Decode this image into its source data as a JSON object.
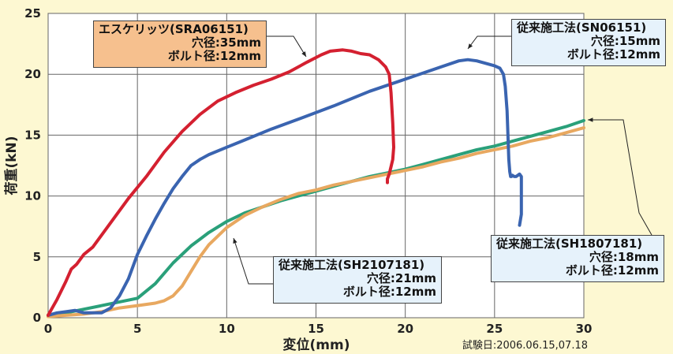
{
  "chart_data": {
    "type": "line",
    "title": "",
    "xlabel": "変位(mm)",
    "ylabel": "荷重(kN)",
    "xlim": [
      0,
      30
    ],
    "ylim": [
      0,
      25
    ],
    "xticks": [
      "0",
      "5",
      "10",
      "15",
      "20",
      "25",
      "30"
    ],
    "yticks": [
      "0",
      "5",
      "10",
      "15",
      "20",
      "25"
    ],
    "grid": true,
    "note": "試験日:2006.06.15,07.18",
    "series": [
      {
        "name": "エスケリッツ(SRA06151)",
        "color": "#d42030",
        "hole": "穴径:35mm",
        "bolt": "ボルト径:12mm",
        "x": [
          0,
          0.5,
          1.0,
          1.3,
          1.6,
          2.0,
          2.5,
          3.5,
          4.5,
          5.5,
          6.5,
          7.5,
          8.5,
          9.5,
          10.5,
          11.5,
          12.5,
          13.5,
          14.5,
          15.3,
          15.8,
          16.5,
          17.0,
          17.5,
          18.0,
          18.5,
          18.9,
          19.1,
          19.2,
          19.3,
          19.35,
          19.3,
          19.2,
          19.1,
          19.0,
          19.0
        ],
        "y": [
          0.2,
          1.5,
          3.0,
          4.0,
          4.4,
          5.2,
          5.8,
          7.8,
          9.8,
          11.6,
          13.6,
          15.3,
          16.7,
          17.8,
          18.5,
          19.1,
          19.6,
          20.2,
          21.0,
          21.6,
          21.9,
          22.0,
          21.9,
          21.7,
          21.6,
          21.2,
          20.6,
          20.0,
          18.5,
          16.0,
          14.0,
          13.0,
          12.4,
          11.8,
          11.4,
          11.1
        ]
      },
      {
        "name": "従来施工法(SN06151)",
        "color": "#3a64b0",
        "hole": "穴径:15mm",
        "bolt": "ボルト径:12mm",
        "x": [
          0,
          0.5,
          1.0,
          1.5,
          2.0,
          2.5,
          3.0,
          3.5,
          4.0,
          4.5,
          5.0,
          5.5,
          6.0,
          6.5,
          7.0,
          7.5,
          8.0,
          8.5,
          9.0,
          10.0,
          11.0,
          12.5,
          14.0,
          16.0,
          18.0,
          20.0,
          22.0,
          23.0,
          23.5,
          24.0,
          24.5,
          25.0,
          25.3,
          25.5,
          25.6,
          25.7,
          25.75,
          25.8,
          25.85,
          25.9,
          25.95,
          26.0,
          26.1,
          26.2,
          26.3,
          26.4,
          26.5,
          26.5,
          26.5,
          26.5,
          26.4
        ],
        "y": [
          0.2,
          0.4,
          0.5,
          0.6,
          0.4,
          0.4,
          0.4,
          0.8,
          1.8,
          3.2,
          5.2,
          6.7,
          8.1,
          9.4,
          10.6,
          11.6,
          12.5,
          13.0,
          13.4,
          14.0,
          14.6,
          15.5,
          16.3,
          17.4,
          18.6,
          19.6,
          20.6,
          21.1,
          21.2,
          21.1,
          20.9,
          20.7,
          20.5,
          20.0,
          19.0,
          17.0,
          15.0,
          13.0,
          12.0,
          11.6,
          11.6,
          11.7,
          11.6,
          11.6,
          11.7,
          11.8,
          11.6,
          10.8,
          9.5,
          8.5,
          7.6
        ]
      },
      {
        "name": "従来施工法(SH1807181)",
        "color": "#2aa07a",
        "hole": "穴径:18mm",
        "bolt": "ボルト径:12mm",
        "x": [
          0,
          1,
          2,
          3,
          4,
          5,
          6,
          7,
          8,
          9,
          10,
          11,
          12,
          13,
          14,
          15,
          16,
          17,
          18,
          19,
          20,
          21,
          22,
          23,
          24,
          25,
          26,
          27,
          28,
          29,
          30
        ],
        "y": [
          0.2,
          0.4,
          0.7,
          1.0,
          1.3,
          1.6,
          2.8,
          4.5,
          5.9,
          7.0,
          7.9,
          8.6,
          9.1,
          9.6,
          10.0,
          10.4,
          10.8,
          11.2,
          11.6,
          11.9,
          12.2,
          12.6,
          13.0,
          13.4,
          13.8,
          14.1,
          14.5,
          14.9,
          15.3,
          15.7,
          16.2
        ]
      },
      {
        "name": "従来施工法(SH2107181)",
        "color": "#e8a860",
        "hole": "穴径:21mm",
        "bolt": "ボルト径:12mm",
        "x": [
          0,
          1,
          2,
          3,
          4,
          5,
          6,
          6.5,
          7,
          7.5,
          8,
          8.5,
          9,
          10,
          11,
          12,
          13,
          14,
          15,
          16,
          17,
          18,
          19,
          20,
          21,
          22,
          23,
          24,
          25,
          26,
          27,
          28,
          29,
          30
        ],
        "y": [
          0.1,
          0.2,
          0.3,
          0.5,
          0.8,
          1.0,
          1.2,
          1.4,
          1.8,
          2.6,
          3.8,
          5.0,
          6.0,
          7.4,
          8.4,
          9.1,
          9.7,
          10.2,
          10.5,
          10.9,
          11.2,
          11.5,
          11.8,
          12.1,
          12.4,
          12.8,
          13.1,
          13.5,
          13.8,
          14.1,
          14.5,
          14.8,
          15.2,
          15.6
        ]
      }
    ]
  }
}
